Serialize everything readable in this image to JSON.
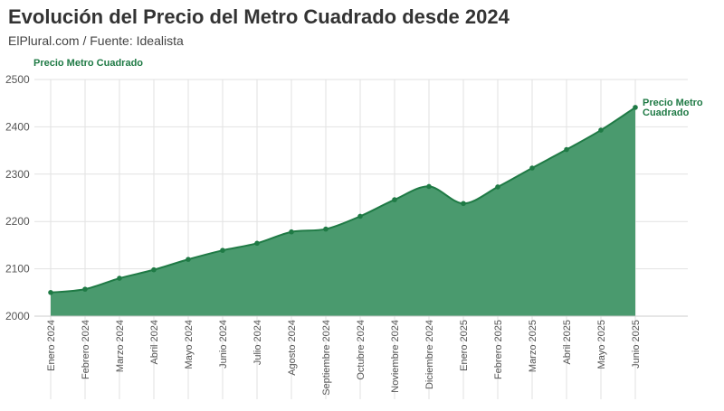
{
  "header": {
    "title": "Evolución del Precio del Metro Cuadrado desde 2024",
    "subtitle": "ElPlural.com / Fuente: Idealista"
  },
  "colors": {
    "series": "#1f7a45",
    "area": "#4a9a6e",
    "grid": "#e2e2e2",
    "axis_text": "#555555",
    "title": "#333333"
  },
  "chart_data": {
    "type": "area",
    "ylabel": "Precio Metro Cuadrado",
    "ylim": [
      2000,
      2500
    ],
    "yticks": [
      2000,
      2100,
      2200,
      2300,
      2400,
      2500
    ],
    "grid": true,
    "categories": [
      "Enero 2024",
      "Febrero 2024",
      "Marzo 2024",
      "Abril 2024",
      "Mayo 2024",
      "Junio 2024",
      "Julio 2024",
      "Agosto 2024",
      "Septiembre 2024",
      "Octubre 2024",
      "Noviembre 2024",
      "Diciembre 2024",
      "Enero 2025",
      "Febrero 2025",
      "Marzo 2025",
      "Abril 2025",
      "Mayo 2025",
      "Junio 2025"
    ],
    "series": [
      {
        "name": "Precio Metro Cuadrado",
        "values": [
          2050,
          2057,
          2080,
          2098,
          2120,
          2139,
          2154,
          2178,
          2184,
          2211,
          2246,
          2274,
          2238,
          2273,
          2313,
          2352,
          2393,
          2441
        ]
      }
    ]
  }
}
